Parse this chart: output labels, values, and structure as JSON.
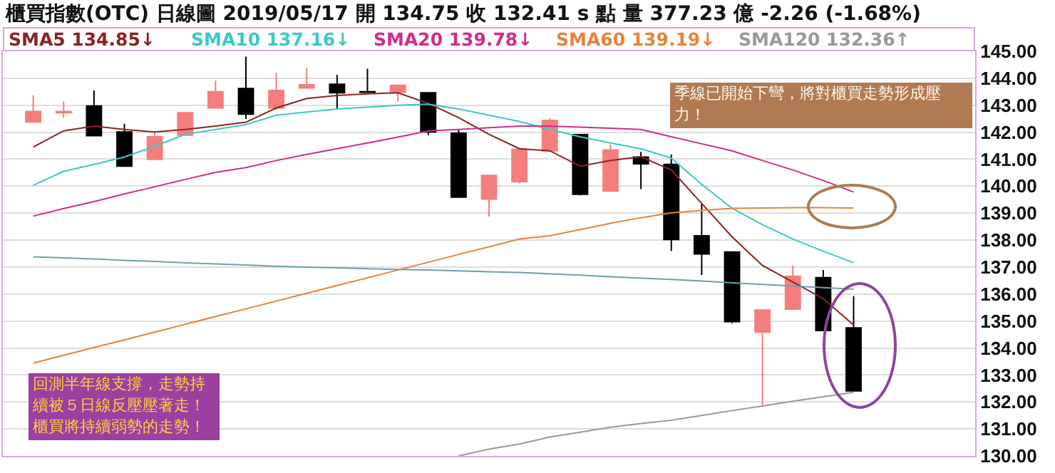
{
  "chart_data": {
    "type": "candlestick",
    "title": "櫃買指數(OTC)  日線圖  2019/05/17  開 134.75  收 132.41 s 點  量 377.23 億  -2.26 (-1.68%)",
    "categories": [
      null,
      null,
      null,
      null,
      null,
      null,
      null,
      null,
      null,
      null,
      null,
      null,
      null,
      null,
      null,
      null,
      null,
      null,
      null,
      null,
      null,
      null,
      null,
      null,
      null,
      null,
      null,
      null
    ],
    "ohlc": [
      [
        142.38,
        143.37,
        142.38,
        142.77
      ],
      [
        142.72,
        143.13,
        142.54,
        142.77
      ],
      [
        142.97,
        143.55,
        141.87,
        141.87
      ],
      [
        142.01,
        142.31,
        140.74,
        140.74
      ],
      [
        140.99,
        142.01,
        140.99,
        141.83
      ],
      [
        141.89,
        142.72,
        141.89,
        142.72
      ],
      [
        142.9,
        143.92,
        142.9,
        143.5
      ],
      [
        143.62,
        144.8,
        142.49,
        142.67
      ],
      [
        142.9,
        144.2,
        142.82,
        143.55
      ],
      [
        143.64,
        144.38,
        143.64,
        143.76
      ],
      [
        143.78,
        144.13,
        142.84,
        143.46
      ],
      [
        143.5,
        144.35,
        143.48,
        143.48
      ],
      [
        143.48,
        143.76,
        143.13,
        143.74
      ],
      [
        143.46,
        143.46,
        141.89,
        142.01
      ],
      [
        141.96,
        142.1,
        139.59,
        139.59
      ],
      [
        139.52,
        140.4,
        138.87,
        140.4
      ],
      [
        140.17,
        141.36,
        140.1,
        141.36
      ],
      [
        141.31,
        142.52,
        141.31,
        142.44
      ],
      [
        141.91,
        141.91,
        139.66,
        139.7
      ],
      [
        139.82,
        141.55,
        139.82,
        141.34
      ],
      [
        141.08,
        141.27,
        139.89,
        140.83
      ],
      [
        140.81,
        141.17,
        137.6,
        138.02
      ],
      [
        138.16,
        139.36,
        136.71,
        137.49
      ],
      [
        137.56,
        137.56,
        134.92,
        134.98
      ],
      [
        134.59,
        135.41,
        131.82,
        135.41
      ],
      [
        135.44,
        137.06,
        135.44,
        136.66
      ],
      [
        136.61,
        136.89,
        134.65,
        134.65
      ],
      [
        134.75,
        135.92,
        132.41,
        132.41
      ]
    ],
    "colors": [
      "#f47e7e",
      "#f47e7e",
      "#000000",
      "#000000",
      "#f47e7e",
      "#f47e7e",
      "#f47e7e",
      "#000000",
      "#f47e7e",
      "#f47e7e",
      "#000000",
      "#000000",
      "#f47e7e",
      "#000000",
      "#000000",
      "#f47e7e",
      "#f47e7e",
      "#f47e7e",
      "#000000",
      "#f47e7e",
      "#000000",
      "#000000",
      "#000000",
      "#000000",
      "#f47e7e",
      "#f47e7e",
      "#000000",
      "#000000"
    ],
    "series": [
      {
        "type": "line",
        "name": "SMA5 134.85↓",
        "color": "#8b2323",
        "values": [
          141.45,
          142.05,
          142.23,
          142.1,
          142.01,
          142.1,
          142.23,
          142.37,
          142.9,
          143.25,
          143.36,
          143.42,
          143.46,
          143.07,
          142.54,
          141.92,
          141.39,
          141.31,
          140.74,
          140.95,
          141.09,
          140.6,
          139.36,
          138.12,
          137.06,
          136.45,
          135.83,
          134.85
        ]
      },
      {
        "type": "line",
        "name": "SMA10 137.16↓",
        "color": "#3cc8c8",
        "values": [
          140.03,
          140.55,
          140.81,
          141.08,
          141.48,
          141.92,
          142.1,
          142.28,
          142.63,
          142.75,
          142.86,
          142.93,
          143.0,
          143.04,
          142.86,
          142.63,
          142.4,
          142.1,
          141.83,
          141.6,
          141.39,
          141.04,
          140.07,
          139.18,
          138.57,
          138.04,
          137.59,
          137.16
        ]
      },
      {
        "type": "line",
        "name": "SMA20 139.78↓",
        "color": "#d02c8f",
        "values": [
          138.89,
          139.17,
          139.43,
          139.71,
          139.98,
          140.25,
          140.51,
          140.69,
          140.95,
          141.18,
          141.39,
          141.6,
          141.82,
          142.05,
          142.1,
          142.17,
          142.23,
          142.23,
          142.19,
          142.15,
          142.1,
          141.83,
          141.57,
          141.31,
          140.95,
          140.6,
          140.21,
          139.78
        ]
      },
      {
        "type": "line",
        "name": "SMA60 139.19↓",
        "color": "#e8823a",
        "values": [
          133.44,
          133.73,
          134.02,
          134.3,
          134.59,
          134.88,
          135.17,
          135.45,
          135.74,
          136.03,
          136.32,
          136.6,
          136.89,
          137.18,
          137.47,
          137.75,
          138.04,
          138.16,
          138.39,
          138.62,
          138.83,
          139.01,
          139.1,
          139.18,
          139.19,
          139.2,
          139.2,
          139.19
        ]
      },
      {
        "type": "line",
        "name": "SMA120 132.36↑",
        "color": "#999999",
        "values": [
          null,
          null,
          null,
          null,
          null,
          null,
          null,
          null,
          null,
          null,
          null,
          null,
          null,
          null,
          130.0,
          130.25,
          130.44,
          130.7,
          130.88,
          131.06,
          131.2,
          131.32,
          131.5,
          131.68,
          131.85,
          132.03,
          132.19,
          132.36
        ]
      },
      {
        "type": "line",
        "color": "#6fa0a8",
        "values": [
          137.38,
          137.34,
          137.3,
          137.25,
          137.21,
          137.16,
          137.12,
          137.08,
          137.03,
          137.0,
          136.97,
          136.94,
          136.91,
          136.89,
          136.86,
          136.83,
          136.8,
          136.75,
          136.7,
          136.64,
          136.59,
          136.54,
          136.48,
          136.42,
          136.36,
          136.3,
          136.24,
          136.18
        ]
      }
    ],
    "ylim": [
      130,
      145
    ],
    "yticks": [
      {
        "value": 130,
        "label": "130.00"
      },
      {
        "value": 131,
        "label": "131.00"
      },
      {
        "value": 132,
        "label": "132.00"
      },
      {
        "value": 133,
        "label": "133.00"
      },
      {
        "value": 134,
        "label": "134.00"
      },
      {
        "value": 135,
        "label": "135.00"
      },
      {
        "value": 136,
        "label": "136.00"
      },
      {
        "value": 137,
        "label": "137.00"
      },
      {
        "value": 138,
        "label": "138.00"
      },
      {
        "value": 139,
        "label": "139.00"
      },
      {
        "value": 140,
        "label": "140.00"
      },
      {
        "value": 141,
        "label": "141.00"
      },
      {
        "value": 142,
        "label": "142.00"
      },
      {
        "value": 143,
        "label": "143.00"
      },
      {
        "value": 144,
        "label": "144.00"
      },
      {
        "value": 145,
        "label": "145.00"
      }
    ],
    "grid": "y",
    "legend": "top",
    "tick_labels": "y",
    "annotations": [
      "季線已開始下彎，將對櫃買走勢形成壓力！",
      "回測半年線支撐，走勢持續被５日線反壓壓著走！櫃買將持續弱勢的走勢！"
    ]
  }
}
